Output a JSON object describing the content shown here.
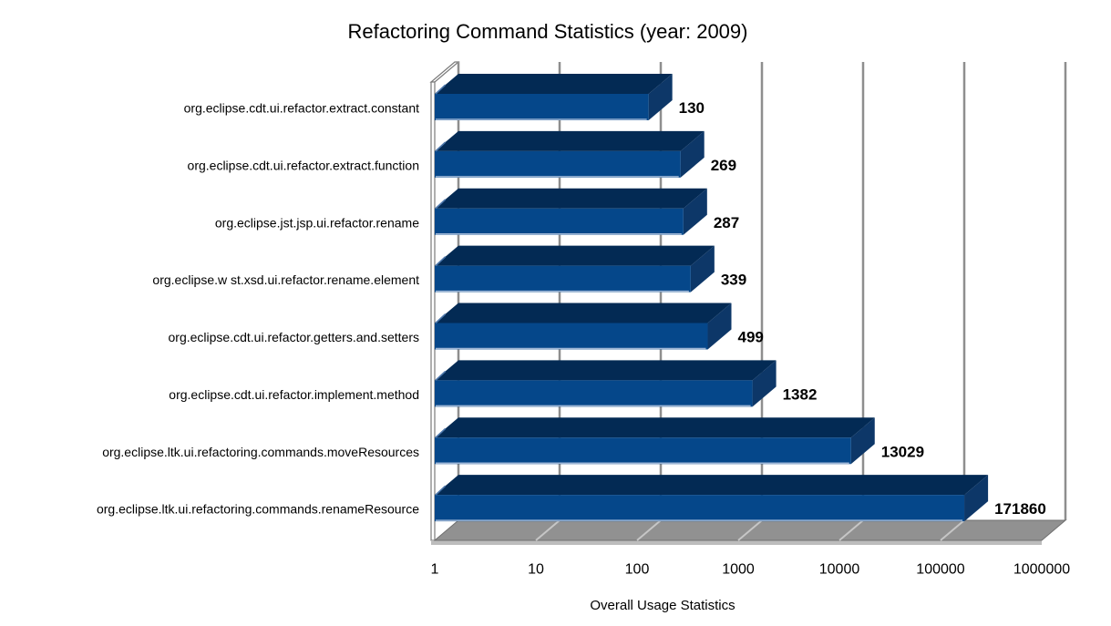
{
  "chart_data": {
    "type": "bar",
    "orientation": "horizontal",
    "x_scale": "log",
    "title": "Refactoring Command Statistics (year: 2009)",
    "xlabel": "Overall Usage Statistics",
    "ylabel": "",
    "categories": [
      "org.eclipse.cdt.ui.refactor.extract.constant",
      "org.eclipse.cdt.ui.refactor.extract.function",
      "org.eclipse.jst.jsp.ui.refactor.rename",
      "org.eclipse.w st.xsd.ui.refactor.rename.element",
      "org.eclipse.cdt.ui.refactor.getters.and.setters",
      "org.eclipse.cdt.ui.refactor.implement.method",
      "org.eclipse.ltk.ui.refactoring.commands.moveResources",
      "org.eclipse.ltk.ui.refactoring.commands.renameResource"
    ],
    "values": [
      130,
      269,
      287,
      339,
      499,
      1382,
      13029,
      171860
    ],
    "value_labels": [
      "130",
      "269",
      "287",
      "339",
      "499",
      "1382",
      "13029",
      "171860"
    ],
    "x_ticks": [
      "1",
      "10",
      "100",
      "1000",
      "10000",
      "100000",
      "1000000"
    ],
    "xlim": [
      1,
      1000000
    ],
    "grid": true,
    "legend": false,
    "style": "3d-bar",
    "colors": {
      "bar_front": "#05478a",
      "bar_top": "#032a54",
      "bar_end": "#0d3768",
      "bar_bottom_highlight": "#9db6d6",
      "bar_left_highlight": "#4d77ab",
      "gridline": "#8e8e8e",
      "floor": "#919191",
      "floor_decade_line": "#c6c6c6",
      "floor_thickness": "#bdbdbd",
      "wall_edge": "#7a7a7a",
      "text": "#000000",
      "background": "#ffffff"
    }
  }
}
